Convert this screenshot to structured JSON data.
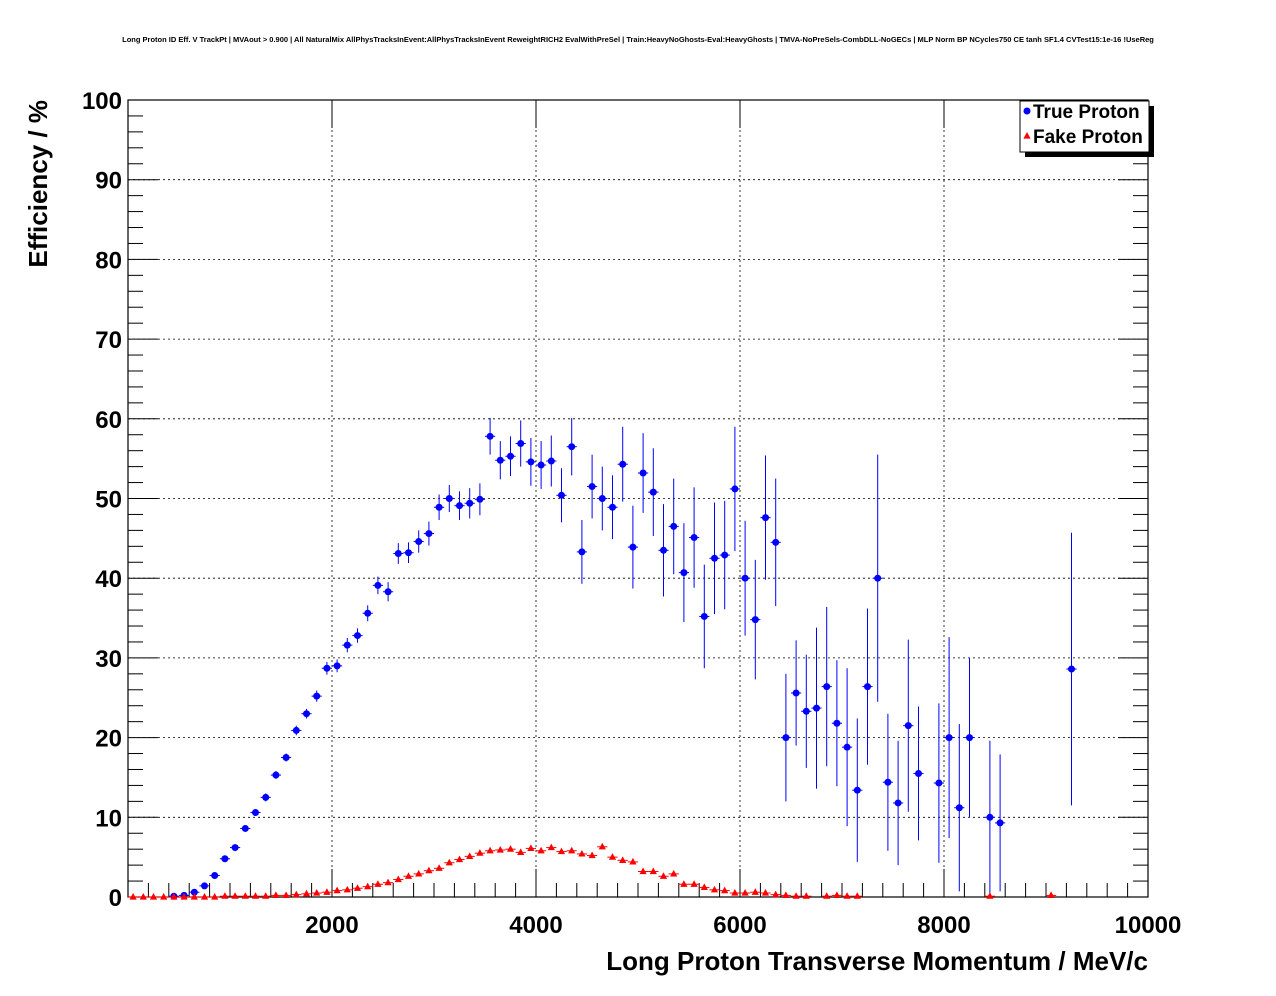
{
  "chart_data": {
    "type": "scatter",
    "title": "Long Proton ID Eff. V TrackPt | MVAout > 0.900 | All NaturalMix AllPhysTracksInEvent:AllPhysTracksInEvent ReweightRICH2 EvalWithPreSel | Train:HeavyNoGhosts-Eval:HeavyGhosts | TMVA-NoPreSels-CombDLL-NoGECs | MLP Norm BP NCycles750 CE tanh SF1.4 CVTest15:1e-16 !UseReg",
    "xlabel": "Long Proton Transverse Momentum / MeV/c",
    "ylabel": "Efficiency / %",
    "xlim": [
      0,
      10000
    ],
    "ylim": [
      0,
      100
    ],
    "x_ticks": [
      2000,
      4000,
      6000,
      8000,
      10000
    ],
    "y_ticks": [
      0,
      10,
      20,
      30,
      40,
      50,
      60,
      70,
      80,
      90,
      100
    ],
    "grid": true,
    "legend_position": "top-right",
    "series": [
      {
        "name": "True Proton",
        "color": "#0000ff",
        "marker": "circle",
        "points": [
          [
            400,
            0.1,
            0.1
          ],
          [
            500,
            0.2,
            0.1
          ],
          [
            600,
            0.6,
            0.2
          ],
          [
            700,
            1.4,
            0.3
          ],
          [
            800,
            2.7,
            0.3
          ],
          [
            900,
            4.8,
            0.4
          ],
          [
            1000,
            6.2,
            0.4
          ],
          [
            1100,
            8.6,
            0.4
          ],
          [
            1200,
            10.6,
            0.4
          ],
          [
            1300,
            12.5,
            0.5
          ],
          [
            1400,
            15.3,
            0.5
          ],
          [
            1500,
            17.5,
            0.5
          ],
          [
            1600,
            20.9,
            0.6
          ],
          [
            1700,
            23.0,
            0.6
          ],
          [
            1800,
            25.2,
            0.7
          ],
          [
            1900,
            28.7,
            0.8
          ],
          [
            2000,
            29.0,
            0.8
          ],
          [
            2100,
            31.6,
            0.9
          ],
          [
            2200,
            32.8,
            0.9
          ],
          [
            2300,
            35.6,
            1.0
          ],
          [
            2400,
            39.1,
            1.1
          ],
          [
            2500,
            38.3,
            1.2
          ],
          [
            2600,
            43.1,
            1.3
          ],
          [
            2700,
            43.2,
            1.3
          ],
          [
            2800,
            44.6,
            1.4
          ],
          [
            2900,
            45.6,
            1.5
          ],
          [
            3000,
            48.9,
            1.6
          ],
          [
            3100,
            50.0,
            1.7
          ],
          [
            3200,
            49.1,
            1.8
          ],
          [
            3300,
            49.4,
            1.9
          ],
          [
            3400,
            49.9,
            2.0
          ],
          [
            3500,
            57.8,
            2.3
          ],
          [
            3600,
            54.8,
            2.4
          ],
          [
            3700,
            55.3,
            2.5
          ],
          [
            3800,
            56.9,
            2.9
          ],
          [
            3900,
            54.6,
            3.0
          ],
          [
            4000,
            54.2,
            3.0
          ],
          [
            4100,
            54.7,
            3.2
          ],
          [
            4200,
            50.4,
            3.4
          ],
          [
            4300,
            56.5,
            3.6
          ],
          [
            4400,
            43.3,
            4.0
          ],
          [
            4500,
            51.5,
            4.0
          ],
          [
            4600,
            50.0,
            4.0
          ],
          [
            4700,
            48.9,
            4.0
          ],
          [
            4800,
            54.3,
            4.7
          ],
          [
            4900,
            43.9,
            5.2
          ],
          [
            5000,
            53.2,
            5.0
          ],
          [
            5100,
            50.8,
            5.5
          ],
          [
            5200,
            43.5,
            5.8
          ],
          [
            5300,
            46.5,
            6.0
          ],
          [
            5400,
            40.7,
            6.2
          ],
          [
            5500,
            45.1,
            6.3
          ],
          [
            5600,
            35.2,
            6.5
          ],
          [
            5700,
            42.5,
            7.0
          ],
          [
            5800,
            42.9,
            6.8
          ],
          [
            5900,
            51.2,
            7.8
          ],
          [
            6000,
            40.0,
            7.2
          ],
          [
            6100,
            34.8,
            7.5
          ],
          [
            6200,
            47.6,
            7.8
          ],
          [
            6300,
            44.5,
            8.0
          ],
          [
            6400,
            20.0,
            8.0
          ],
          [
            6500,
            25.6,
            6.6
          ],
          [
            6600,
            23.3,
            7.1
          ],
          [
            6700,
            23.7,
            10.1
          ],
          [
            6800,
            26.4,
            10.0
          ],
          [
            6900,
            21.8,
            7.9
          ],
          [
            7000,
            18.8,
            9.9
          ],
          [
            7100,
            13.4,
            9.0
          ],
          [
            7200,
            26.4,
            9.8
          ],
          [
            7300,
            40.0,
            15.5
          ],
          [
            7400,
            14.4,
            8.6
          ],
          [
            7500,
            11.8,
            7.8
          ],
          [
            7600,
            21.5,
            10.8
          ],
          [
            7700,
            15.5,
            8.4
          ],
          [
            7900,
            14.3,
            10.0
          ],
          [
            8000,
            20.0,
            12.6
          ],
          [
            8100,
            11.2,
            10.5
          ],
          [
            8200,
            20.0,
            10.0
          ],
          [
            8400,
            10.0,
            9.6
          ],
          [
            8500,
            9.3,
            8.6
          ],
          [
            9200,
            28.6,
            17.1
          ]
        ]
      },
      {
        "name": "Fake Proton",
        "color": "#ff0000",
        "marker": "triangle",
        "points": [
          [
            0,
            0.0
          ],
          [
            100,
            0.0
          ],
          [
            200,
            0.0
          ],
          [
            300,
            0.0
          ],
          [
            400,
            0.0
          ],
          [
            500,
            0.0
          ],
          [
            600,
            0.0
          ],
          [
            700,
            0.0
          ],
          [
            800,
            0.0
          ],
          [
            900,
            0.1
          ],
          [
            1000,
            0.1
          ],
          [
            1100,
            0.1
          ],
          [
            1200,
            0.1
          ],
          [
            1300,
            0.1
          ],
          [
            1400,
            0.2
          ],
          [
            1500,
            0.2
          ],
          [
            1600,
            0.3
          ],
          [
            1700,
            0.4
          ],
          [
            1800,
            0.5
          ],
          [
            1900,
            0.6
          ],
          [
            2000,
            0.8
          ],
          [
            2100,
            0.9
          ],
          [
            2200,
            1.1
          ],
          [
            2300,
            1.3
          ],
          [
            2400,
            1.6
          ],
          [
            2500,
            1.8
          ],
          [
            2600,
            2.2
          ],
          [
            2700,
            2.6
          ],
          [
            2800,
            2.9
          ],
          [
            2900,
            3.3
          ],
          [
            3000,
            3.6
          ],
          [
            3100,
            4.3
          ],
          [
            3200,
            4.7
          ],
          [
            3300,
            5.1
          ],
          [
            3400,
            5.5
          ],
          [
            3500,
            5.8
          ],
          [
            3600,
            5.9
          ],
          [
            3700,
            6.0
          ],
          [
            3800,
            5.6
          ],
          [
            3900,
            6.1
          ],
          [
            4000,
            5.8
          ],
          [
            4100,
            6.2
          ],
          [
            4200,
            5.7
          ],
          [
            4300,
            5.8
          ],
          [
            4400,
            5.4
          ],
          [
            4500,
            5.2
          ],
          [
            4600,
            6.3
          ],
          [
            4700,
            5.0
          ],
          [
            4800,
            4.6
          ],
          [
            4900,
            4.4
          ],
          [
            5000,
            3.2
          ],
          [
            5100,
            3.2
          ],
          [
            5200,
            2.6
          ],
          [
            5300,
            2.9
          ],
          [
            5400,
            1.6
          ],
          [
            5500,
            1.6
          ],
          [
            5600,
            1.2
          ],
          [
            5700,
            0.9
          ],
          [
            5800,
            0.8
          ],
          [
            5900,
            0.5
          ],
          [
            6000,
            0.5
          ],
          [
            6100,
            0.6
          ],
          [
            6200,
            0.5
          ],
          [
            6300,
            0.3
          ],
          [
            6400,
            0.2
          ],
          [
            6500,
            0.1
          ],
          [
            6600,
            0.1
          ],
          [
            6800,
            0.1
          ],
          [
            6900,
            0.2
          ],
          [
            7000,
            0.1
          ],
          [
            7100,
            0.1
          ],
          [
            8400,
            0.1
          ],
          [
            9000,
            0.2
          ]
        ]
      }
    ]
  }
}
